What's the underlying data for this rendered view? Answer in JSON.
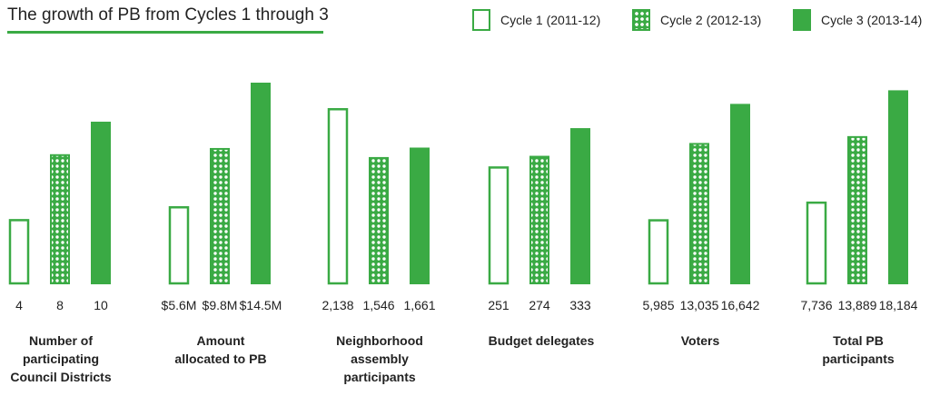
{
  "title": "The growth of PB from Cycles 1 through 3",
  "legend": {
    "c1": "Cycle 1 (2011-12)",
    "c2": "Cycle 2 (2012-13)",
    "c3": "Cycle 3 (2013-14)"
  },
  "colors": {
    "accent": "#3aaa44",
    "background": "#ffffff",
    "text": "#222222"
  },
  "chart_data": {
    "type": "bar",
    "title": "The growth of PB from Cycles 1 through 3",
    "legend_position": "top-right",
    "grid": false,
    "series": [
      {
        "name": "Cycle 1 (2011-12)",
        "style": "outline"
      },
      {
        "name": "Cycle 2 (2012-13)",
        "style": "dotted"
      },
      {
        "name": "Cycle 3 (2013-14)",
        "style": "solid"
      }
    ],
    "groups": [
      {
        "category": [
          "Number of",
          "participating",
          "Council Districts"
        ],
        "values": [
          4,
          8,
          10
        ],
        "labels": [
          "4",
          "8",
          "10"
        ]
      },
      {
        "category": [
          "Amount",
          "allocated to PB"
        ],
        "values": [
          5.6,
          9.8,
          14.5
        ],
        "labels": [
          "$5.6M",
          "$9.8M",
          "$14.5M"
        ]
      },
      {
        "category": [
          "Neighborhood",
          "assembly",
          "participants"
        ],
        "values": [
          2138,
          1546,
          1661
        ],
        "labels": [
          "2,138",
          "1,546",
          "1,661"
        ]
      },
      {
        "category": [
          "Budget delegates"
        ],
        "values": [
          251,
          274,
          333
        ],
        "labels": [
          "251",
          "274",
          "333"
        ]
      },
      {
        "category": [
          "Voters"
        ],
        "values": [
          5985,
          13035,
          16642
        ],
        "labels": [
          "5,985",
          "13,035",
          "16,642"
        ]
      },
      {
        "category": [
          "Total PB",
          "participants"
        ],
        "values": [
          7736,
          13889,
          18184
        ],
        "labels": [
          "7,736",
          "13,889",
          "18,184"
        ]
      }
    ]
  }
}
